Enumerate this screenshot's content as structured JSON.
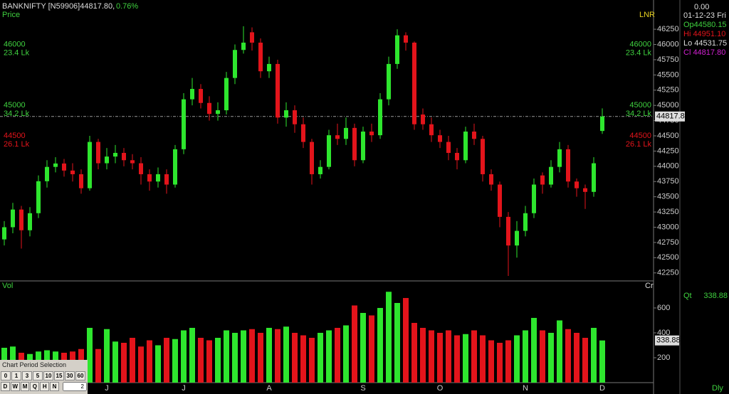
{
  "chart_data": {
    "type": "candlestick",
    "title": "BANKNIFTY [N59906]44817.80,",
    "change": "0.76%",
    "price_label": "Price",
    "scale_label": "LNR",
    "volume_label": "Vol",
    "volume_unit": "Cr",
    "period_label": "Dly",
    "up_color": "#2ee62e",
    "down_color": "#e3141b",
    "categories": [
      null,
      null,
      null,
      null,
      null,
      null,
      null,
      null,
      null,
      null,
      null,
      null,
      "J",
      null,
      null,
      null,
      null,
      null,
      null,
      null,
      null,
      "J",
      null,
      null,
      null,
      null,
      null,
      null,
      null,
      null,
      null,
      "A",
      null,
      null,
      null,
      null,
      null,
      null,
      null,
      null,
      null,
      null,
      "S",
      null,
      null,
      null,
      null,
      null,
      null,
      null,
      null,
      "O",
      null,
      null,
      null,
      null,
      null,
      null,
      null,
      null,
      null,
      "N",
      null,
      null,
      null,
      null,
      null,
      null,
      null,
      null,
      "D"
    ],
    "open": [
      42800,
      43000,
      43290,
      42950,
      43230,
      43755,
      43990,
      44046,
      43930,
      43870,
      43640,
      44400,
      44050,
      44160,
      44220,
      44100,
      44050,
      43870,
      43750,
      43870,
      43700,
      44280,
      45100,
      45270,
      45040,
      44860,
      44920,
      45450,
      45910,
      46200,
      46030,
      45560,
      45680,
      44800,
      44920,
      44690,
      44400,
      43870,
      43990,
      44510,
      44450,
      44630,
      44100,
      44570,
      44510,
      45100,
      45680,
      46150,
      46030,
      44850,
      44690,
      44510,
      44400,
      44220,
      44100,
      44570,
      44450,
      43870,
      43700,
      43170,
      42700,
      42940,
      43230,
      43850,
      43700,
      43990,
      44280,
      43750,
      43640,
      43580,
      44580.15
    ],
    "high": [
      43100,
      43400,
      43350,
      43330,
      43850,
      44100,
      44150,
      44120,
      44050,
      43950,
      44500,
      44450,
      44300,
      44350,
      44300,
      44200,
      44150,
      43950,
      43980,
      43950,
      44350,
      45200,
      45450,
      45350,
      45150,
      45050,
      45550,
      46000,
      46300,
      46280,
      46100,
      45800,
      45750,
      45050,
      45000,
      44800,
      44450,
      44100,
      44600,
      44700,
      44800,
      44700,
      44650,
      44700,
      45200,
      45800,
      46250,
      46200,
      46050,
      44950,
      44800,
      44600,
      44500,
      44300,
      44650,
      44700,
      44500,
      43950,
      43750,
      43250,
      43100,
      43350,
      43800,
      43900,
      44100,
      44400,
      44350,
      43800,
      43700,
      44150,
      44951.1
    ],
    "low": [
      42700,
      42900,
      42650,
      42850,
      43150,
      43650,
      43900,
      43830,
      43750,
      43550,
      43600,
      43950,
      43950,
      44050,
      44000,
      43950,
      43700,
      43600,
      43650,
      43550,
      43650,
      44200,
      45000,
      44950,
      44750,
      44750,
      44850,
      45350,
      45850,
      45900,
      45450,
      45450,
      44700,
      44650,
      44550,
      44300,
      43700,
      43800,
      43950,
      44350,
      44350,
      44000,
      44050,
      44400,
      44450,
      45000,
      45600,
      45900,
      44600,
      44600,
      44400,
      44300,
      44100,
      43950,
      44050,
      44350,
      43750,
      43600,
      43000,
      42200,
      42500,
      42850,
      43150,
      43550,
      43650,
      43900,
      43650,
      43500,
      43300,
      43500,
      44531.75
    ],
    "close": [
      43000,
      43290,
      42950,
      43230,
      43755,
      43990,
      44046,
      43930,
      43870,
      43640,
      44400,
      44050,
      44160,
      44220,
      44100,
      44050,
      43870,
      43750,
      43870,
      43700,
      44280,
      45100,
      45270,
      45040,
      44860,
      44920,
      45450,
      45910,
      46030,
      46030,
      45560,
      45680,
      44800,
      44920,
      44690,
      44400,
      43870,
      43990,
      44510,
      44450,
      44630,
      44100,
      44570,
      44510,
      45100,
      45680,
      46150,
      46030,
      44690,
      44690,
      44510,
      44400,
      44220,
      44100,
      44570,
      44450,
      43870,
      43700,
      43170,
      42700,
      42940,
      43230,
      43700,
      43700,
      43990,
      44280,
      43750,
      43640,
      43580,
      44050,
      44817.8
    ],
    "volume": [
      280,
      290,
      240,
      230,
      250,
      260,
      250,
      240,
      250,
      270,
      440,
      270,
      430,
      330,
      320,
      360,
      290,
      340,
      300,
      360,
      350,
      420,
      440,
      360,
      340,
      360,
      420,
      400,
      420,
      430,
      400,
      440,
      430,
      450,
      400,
      380,
      360,
      400,
      420,
      440,
      460,
      620,
      560,
      540,
      600,
      730,
      640,
      680,
      480,
      440,
      420,
      400,
      420,
      380,
      390,
      420,
      380,
      340,
      320,
      340,
      380,
      420,
      520,
      420,
      400,
      500,
      430,
      400,
      360,
      440,
      338.88
    ],
    "ylim": [
      42130,
      46730
    ],
    "yticks": [
      46250,
      46000,
      45750,
      45500,
      45250,
      45000,
      44750,
      44500,
      44250,
      44000,
      43750,
      43500,
      43250,
      43000,
      42750,
      42500,
      42250
    ],
    "y2lim": [
      0,
      800
    ],
    "y2ticks": [
      600,
      400,
      200
    ],
    "levels": [
      {
        "value": 46000,
        "label": "23.4 Lk",
        "color": "#3fd13f"
      },
      {
        "value": 45000,
        "label": "34.2 Lk",
        "color": "#3fd13f"
      },
      {
        "value": 44500,
        "label": "26.1 Lk",
        "color": "#e3141b"
      }
    ],
    "info": {
      "top": "0.00",
      "date": "01-12-23 Fri",
      "open": "Op44580.15",
      "high": "Hi 44951.10",
      "low": "Lo 44531.75",
      "close": "Cl 44817.80",
      "qty_label": "Qt"
    }
  },
  "period": {
    "title": "Chart Period Selection",
    "row1": [
      "0",
      "1",
      "3",
      "5",
      "10",
      "15",
      "30",
      "60"
    ],
    "row2": [
      "D",
      "W",
      "M",
      "Q",
      "H",
      "N"
    ],
    "input": "2"
  }
}
